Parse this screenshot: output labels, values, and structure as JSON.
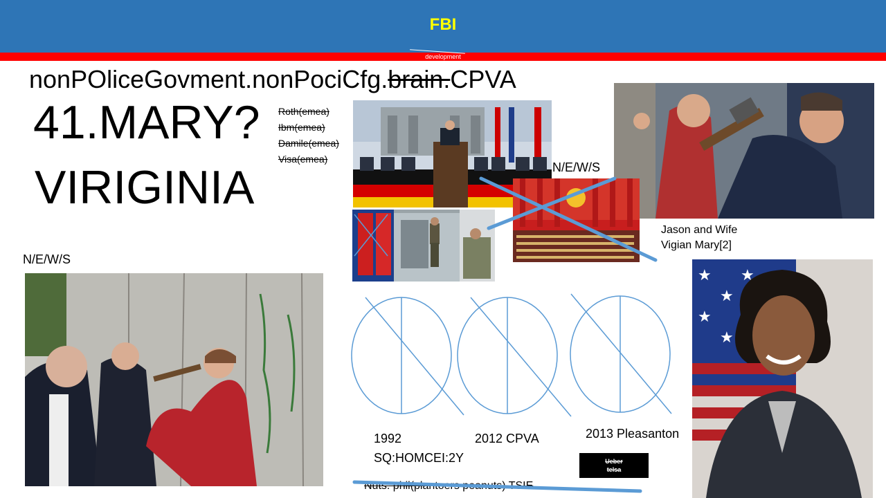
{
  "header": {
    "title": "FBI",
    "subtitle": "development"
  },
  "headline": {
    "prefix": "nonPOliceGovment.nonPociCfg.",
    "struck": "brain.",
    "suffix": "CPVA"
  },
  "main": {
    "line1": "41.MARY?",
    "line2": "VIRIGINIA"
  },
  "struck_list": [
    "Roth(emea)",
    "Ibm(emea)",
    "Damile(emea)",
    "Visa(emea)"
  ],
  "labels": {
    "news_left": "N/E/W/S",
    "news_right": "N/E/W/S",
    "caption_line1": "Jason and Wife",
    "caption_line2": "Vigian Mary[2]",
    "year1_line1": "1992",
    "year1_line2": "SQ:HOMCEI:2Y",
    "year2": "2012 CPVA",
    "year3": "2013 Pleasanton"
  },
  "uber_box": {
    "line1": "Ueber",
    "line2": "telsa"
  },
  "footer_struck": "Nuts: phil(plantoers peanuts) TSIE",
  "colors": {
    "header_blue": "#2e75b6",
    "header_red": "#ff0000",
    "title_yellow": "#ffff00",
    "cross_blue": "#5b9bd5"
  }
}
